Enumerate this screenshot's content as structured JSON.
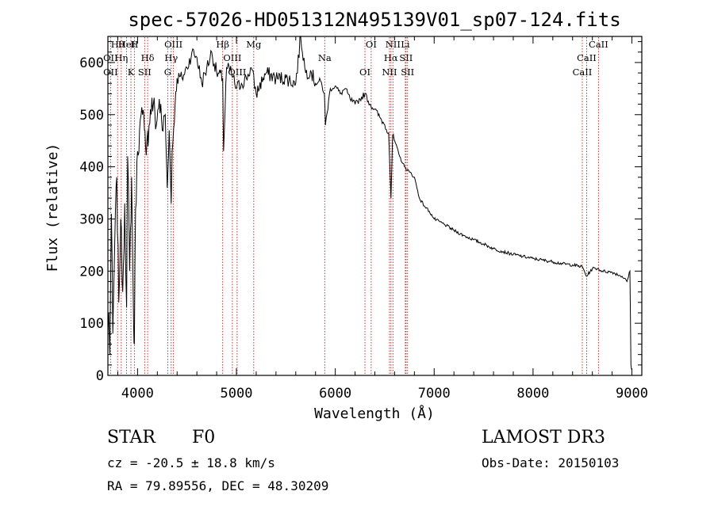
{
  "chart_data": {
    "type": "line",
    "title": "spec-57026-HD051312N495139V01_sp07-124.fits",
    "xlabel": "Wavelength (Å)",
    "ylabel": "Flux (relative)",
    "xlim": [
      3700,
      9100
    ],
    "ylim": [
      0,
      650
    ],
    "x_ticks": [
      4000,
      5000,
      6000,
      7000,
      8000,
      9000
    ],
    "y_ticks": [
      0,
      100,
      200,
      300,
      400,
      500,
      600
    ],
    "series": [
      {
        "name": "spectrum",
        "x": [
          3700,
          3710,
          3720,
          3735,
          3750,
          3770,
          3790,
          3810,
          3830,
          3850,
          3870,
          3889,
          3900,
          3920,
          3940,
          3960,
          3968,
          3980,
          4000,
          4020,
          4050,
          4070,
          4080,
          4102,
          4110,
          4130,
          4160,
          4190,
          4220,
          4250,
          4280,
          4300,
          4320,
          4340,
          4350,
          4380,
          4400,
          4450,
          4500,
          4550,
          4600,
          4650,
          4700,
          4750,
          4800,
          4861,
          4870,
          4900,
          4950,
          5000,
          5050,
          5100,
          5150,
          5200,
          5270,
          5300,
          5400,
          5500,
          5600,
          5650,
          5700,
          5750,
          5800,
          5850,
          5890,
          5900,
          5950,
          6000,
          6050,
          6100,
          6150,
          6200,
          6250,
          6300,
          6350,
          6400,
          6450,
          6500,
          6540,
          6563,
          6580,
          6600,
          6650,
          6700,
          6750,
          6800,
          6850,
          6900,
          6950,
          7000,
          7100,
          7200,
          7300,
          7400,
          7500,
          7600,
          7700,
          7800,
          7900,
          8000,
          8100,
          8200,
          8300,
          8400,
          8500,
          8540,
          8600,
          8650,
          8700,
          8800,
          8900,
          8950,
          8980,
          8990,
          9000
        ],
        "y": [
          80,
          120,
          40,
          310,
          80,
          260,
          380,
          140,
          300,
          160,
          330,
          130,
          420,
          200,
          380,
          100,
          60,
          320,
          430,
          470,
          500,
          470,
          440,
          470,
          450,
          510,
          520,
          480,
          530,
          470,
          500,
          360,
          470,
          330,
          430,
          520,
          570,
          570,
          590,
          620,
          610,
          560,
          590,
          620,
          580,
          570,
          430,
          590,
          580,
          550,
          560,
          570,
          590,
          540,
          570,
          580,
          570,
          570,
          560,
          650,
          580,
          585,
          560,
          565,
          540,
          480,
          550,
          555,
          540,
          550,
          530,
          520,
          530,
          540,
          520,
          510,
          495,
          480,
          465,
          340,
          460,
          450,
          420,
          400,
          390,
          380,
          340,
          325,
          315,
          300,
          290,
          278,
          268,
          260,
          252,
          243,
          237,
          232,
          228,
          224,
          221,
          218,
          214,
          212,
          208,
          190,
          205,
          205,
          200,
          198,
          190,
          180,
          200,
          20,
          10
        ]
      }
    ],
    "line_markers": [
      {
        "label": "Hθ",
        "x": 3798
      },
      {
        "label": "OII",
        "x": 3727
      },
      {
        "label": "OII",
        "x": 3727
      },
      {
        "label": "HeI",
        "x": 3889
      },
      {
        "label": "Hη",
        "x": 3835
      },
      {
        "label": "K",
        "x": 3933
      },
      {
        "label": "H",
        "x": 3968
      },
      {
        "label": "Hδ",
        "x": 4102
      },
      {
        "label": "SII",
        "x": 4072
      },
      {
        "label": "OIII",
        "x": 4363
      },
      {
        "label": "Hγ",
        "x": 4340
      },
      {
        "label": "G",
        "x": 4305
      },
      {
        "label": "Hβ",
        "x": 4861
      },
      {
        "label": "OIII",
        "x": 4959
      },
      {
        "label": "OIII",
        "x": 5007
      },
      {
        "label": "Mg",
        "x": 5175
      },
      {
        "label": "Na",
        "x": 5893
      },
      {
        "label": "OI",
        "x": 6300
      },
      {
        "label": "OI",
        "x": 6363
      },
      {
        "label": "Hα",
        "x": 6563
      },
      {
        "label": "NII",
        "x": 6548
      },
      {
        "label": "NII",
        "x": 6583
      },
      {
        "label": "SII",
        "x": 6716
      },
      {
        "label": "SII",
        "x": 6731
      },
      {
        "label": "Li",
        "x": 6708
      },
      {
        "label": "CaII",
        "x": 8542
      },
      {
        "label": "CaII",
        "x": 8498
      },
      {
        "label": "CaII",
        "x": 8662
      }
    ]
  },
  "info": {
    "object_class": "STAR",
    "subclass": "F0",
    "survey": "LAMOST DR3",
    "redshift": "cz = -20.5 ± 18.8 km/s",
    "obs_date": "Obs-Date: 20150103",
    "coords": "RA =  79.89556, DEC =  48.30209"
  },
  "colors": {
    "spectrum": "#000000",
    "marker_lines": "#b22222",
    "background": "#ffffff"
  }
}
